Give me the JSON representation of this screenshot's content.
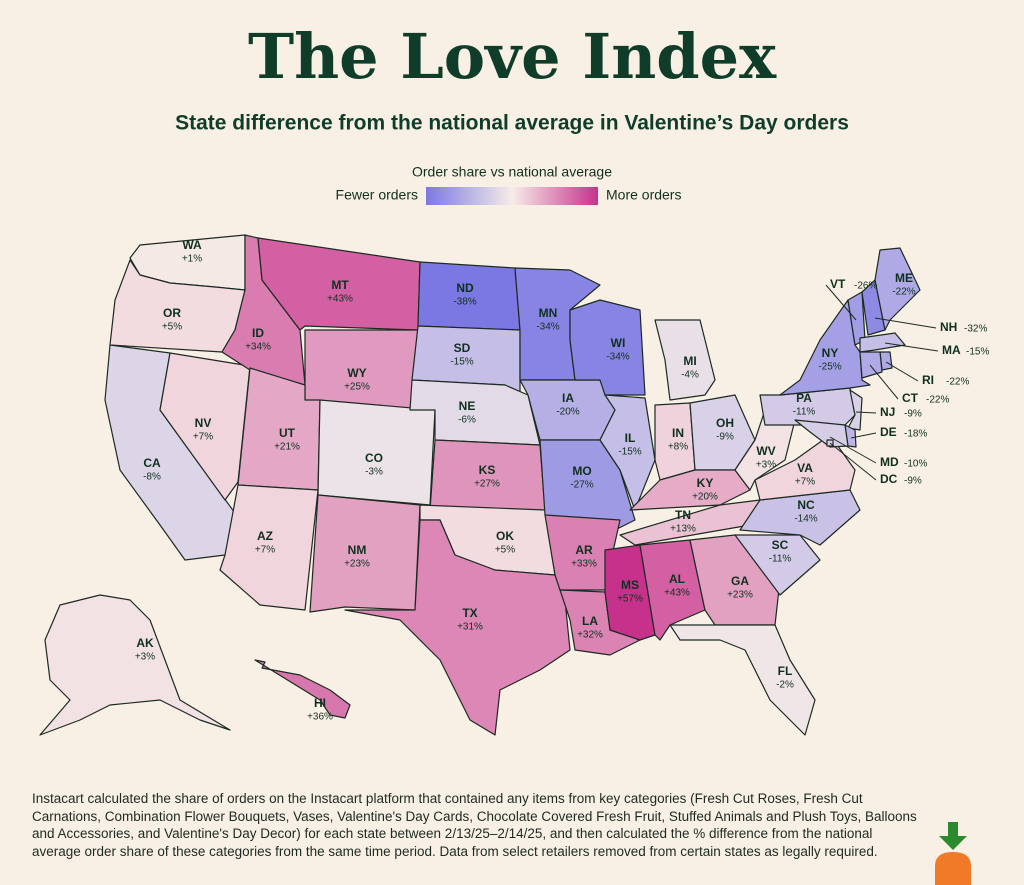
{
  "chart_data": {
    "type": "choropleth",
    "title": "The Love Index",
    "subtitle": "State difference from the national average in Valentine’s Day orders",
    "legend_title": "Order share vs national average",
    "legend_low": "Fewer orders",
    "legend_high": "More orders",
    "colors": [
      "#7b78e3",
      "#f6ece8",
      "#c6328b"
    ],
    "categories": [
      "WA",
      "OR",
      "CA",
      "NV",
      "ID",
      "MT",
      "WY",
      "UT",
      "AZ",
      "CO",
      "NM",
      "ND",
      "SD",
      "NE",
      "KS",
      "OK",
      "TX",
      "MN",
      "IA",
      "MO",
      "AR",
      "LA",
      "WI",
      "IL",
      "MI",
      "IN",
      "OH",
      "KY",
      "TN",
      "MS",
      "AL",
      "GA",
      "FL",
      "SC",
      "NC",
      "VA",
      "WV",
      "PA",
      "NY",
      "NJ",
      "DE",
      "MD",
      "DC",
      "VT",
      "NH",
      "ME",
      "MA",
      "RI",
      "CT",
      "AK",
      "HI"
    ],
    "values": [
      1,
      5,
      -8,
      7,
      34,
      43,
      25,
      21,
      7,
      -3,
      23,
      -38,
      -15,
      -6,
      27,
      5,
      31,
      -34,
      -20,
      -27,
      33,
      32,
      -34,
      -15,
      -4,
      8,
      -9,
      20,
      13,
      57,
      43,
      23,
      -2,
      -11,
      -14,
      7,
      3,
      -11,
      -25,
      -9,
      -18,
      -10,
      -9,
      -26,
      -32,
      -22,
      -15,
      -22,
      -22,
      3,
      36
    ],
    "value_labels": [
      "+1%",
      "+5%",
      "-8%",
      "+7%",
      "+34%",
      "+43%",
      "+25%",
      "+21%",
      "+7%",
      "-3%",
      "+23%",
      "-38%",
      "-15%",
      "-6%",
      "+27%",
      "+5%",
      "+31%",
      "-34%",
      "-20%",
      "-27%",
      "+33%",
      "+32%",
      "-34%",
      "-15%",
      "-4%",
      "+8%",
      "-9%",
      "+20%",
      "+13%",
      "+57%",
      "+43%",
      "+23%",
      "-2%",
      "-11%",
      "-14%",
      "+7%",
      "+3%",
      "-11%",
      "-25%",
      "-9%",
      "-18%",
      "-10%",
      "-9%",
      "-26%",
      "-32%",
      "-22%",
      "-15%",
      "-22%",
      "-22%",
      "+3%",
      "+36%"
    ],
    "footnote": "Instacart calculated the share of orders on the Instacart platform that contained any items from key categories (Fresh Cut Roses, Fresh Cut Carnations, Combination Flower Bouquets, Vases, Valentine's Day Cards, Chocolate Covered Fresh Fruit, Stuffed Animals and Plush Toys, Balloons and Accessories, and Valentine's Day Decor) for each state between 2/13/25–2/14/25, and then calculated the % difference from the national average order share of these categories from the same time period. Data from select retailers removed from certain states as legally required."
  }
}
